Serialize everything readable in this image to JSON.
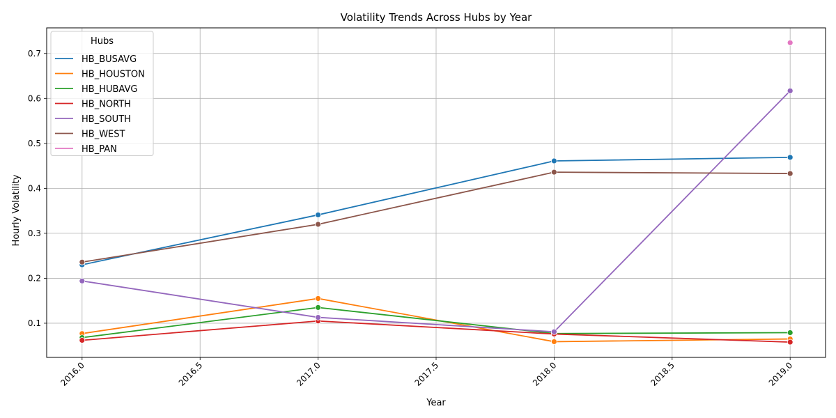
{
  "chart_data": {
    "type": "line",
    "title": "Volatility Trends Across Hubs by Year",
    "xlabel": "Year",
    "ylabel": "Hourly Volatility",
    "xlim": [
      2015.85,
      2019.15
    ],
    "ylim": [
      0.024,
      0.757
    ],
    "xticks": [
      2016.0,
      2016.5,
      2017.0,
      2017.5,
      2018.0,
      2018.5,
      2019.0
    ],
    "xtick_labels": [
      "2016.0",
      "2016.5",
      "2017.0",
      "2017.5",
      "2018.0",
      "2018.5",
      "2019.0"
    ],
    "yticks": [
      0.1,
      0.2,
      0.3,
      0.4,
      0.5,
      0.6,
      0.7
    ],
    "ytick_labels": [
      "0.1",
      "0.2",
      "0.3",
      "0.4",
      "0.5",
      "0.6",
      "0.7"
    ],
    "grid": true,
    "legend": {
      "title": "Hubs",
      "placement": "upper-left"
    },
    "series": [
      {
        "name": "HB_BUSAVG",
        "color": "#1f77b4",
        "x": [
          2016,
          2017,
          2018,
          2019
        ],
        "values": [
          0.23,
          0.341,
          0.461,
          0.469
        ]
      },
      {
        "name": "HB_HOUSTON",
        "color": "#ff7f0e",
        "x": [
          2016,
          2017,
          2018,
          2019
        ],
        "values": [
          0.077,
          0.155,
          0.059,
          0.065
        ]
      },
      {
        "name": "HB_HUBAVG",
        "color": "#2ca02c",
        "x": [
          2016,
          2017,
          2018,
          2019
        ],
        "values": [
          0.068,
          0.135,
          0.077,
          0.079
        ]
      },
      {
        "name": "HB_NORTH",
        "color": "#d62728",
        "x": [
          2016,
          2017,
          2018,
          2019
        ],
        "values": [
          0.062,
          0.105,
          0.076,
          0.058
        ]
      },
      {
        "name": "HB_SOUTH",
        "color": "#9467bd",
        "x": [
          2016,
          2017,
          2018,
          2019
        ],
        "values": [
          0.194,
          0.113,
          0.081,
          0.617
        ]
      },
      {
        "name": "HB_WEST",
        "color": "#8c564b",
        "x": [
          2016,
          2017,
          2018,
          2019
        ],
        "values": [
          0.236,
          0.32,
          0.436,
          0.433
        ]
      },
      {
        "name": "HB_PAN",
        "color": "#e377c2",
        "x": [
          2019
        ],
        "values": [
          0.724
        ]
      }
    ]
  }
}
